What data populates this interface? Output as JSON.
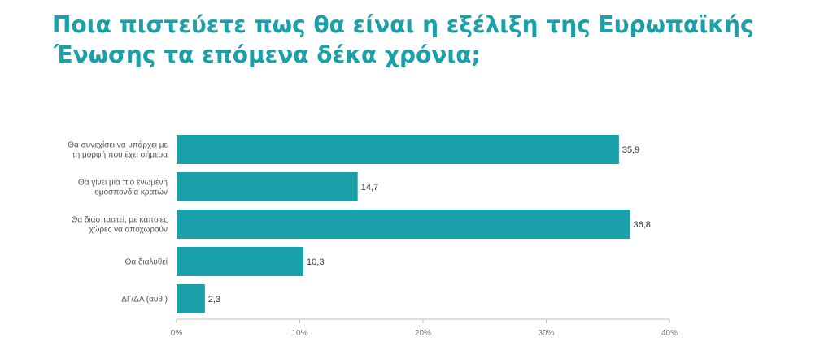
{
  "title_lines": [
    "Ποια πιστεύετε πως θα είναι η εξέλιξη της Ευρωπαϊκής",
    "Ένωσης τα επόμενα δέκα χρόνια;"
  ],
  "colors": {
    "title": "#1aa0a8",
    "bar": "#1aa0a8",
    "axis": "#bfbfbf"
  },
  "chart_data": {
    "type": "bar",
    "orientation": "horizontal",
    "title": "Ποια πιστεύετε πως θα είναι η εξέλιξη της Ευρωπαϊκής Ένωσης τα επόμενα δέκα χρόνια;",
    "categories": [
      "Θα συνεχίσει να υπάρχει με τη μορφή που έχει σήμερα",
      "Θα γίνει μια πιο ενωμένη ομοσπονδία κρατών",
      "Θα διασπαστεί, με κάποιες χώρες να αποχωρούν",
      "Θα διαλυθεί",
      "ΔΓ/ΔΑ (αυθ.)"
    ],
    "category_label_lines": [
      [
        "Θα συνεχίσει να υπάρχει με",
        "τη μορφή που έχει σήμερα"
      ],
      [
        "Θα γίνει μια πιο ενωμένη",
        "ομοσπονδία κρατών"
      ],
      [
        "Θα διασπαστεί, με κάποιες",
        "χώρες να αποχωρούν"
      ],
      [
        "Θα διαλυθεί"
      ],
      [
        "ΔΓ/ΔΑ (αυθ.)"
      ]
    ],
    "values": [
      35.9,
      14.7,
      36.8,
      10.3,
      2.3
    ],
    "value_labels": [
      "35,9",
      "14,7",
      "36,8",
      "10,3",
      "2,3"
    ],
    "xlim": [
      0,
      40
    ],
    "ticks": [
      0,
      10,
      20,
      30,
      40
    ],
    "tick_labels": [
      "0%",
      "10%",
      "20%",
      "30%",
      "40%"
    ],
    "grid": false,
    "legend": "none"
  }
}
